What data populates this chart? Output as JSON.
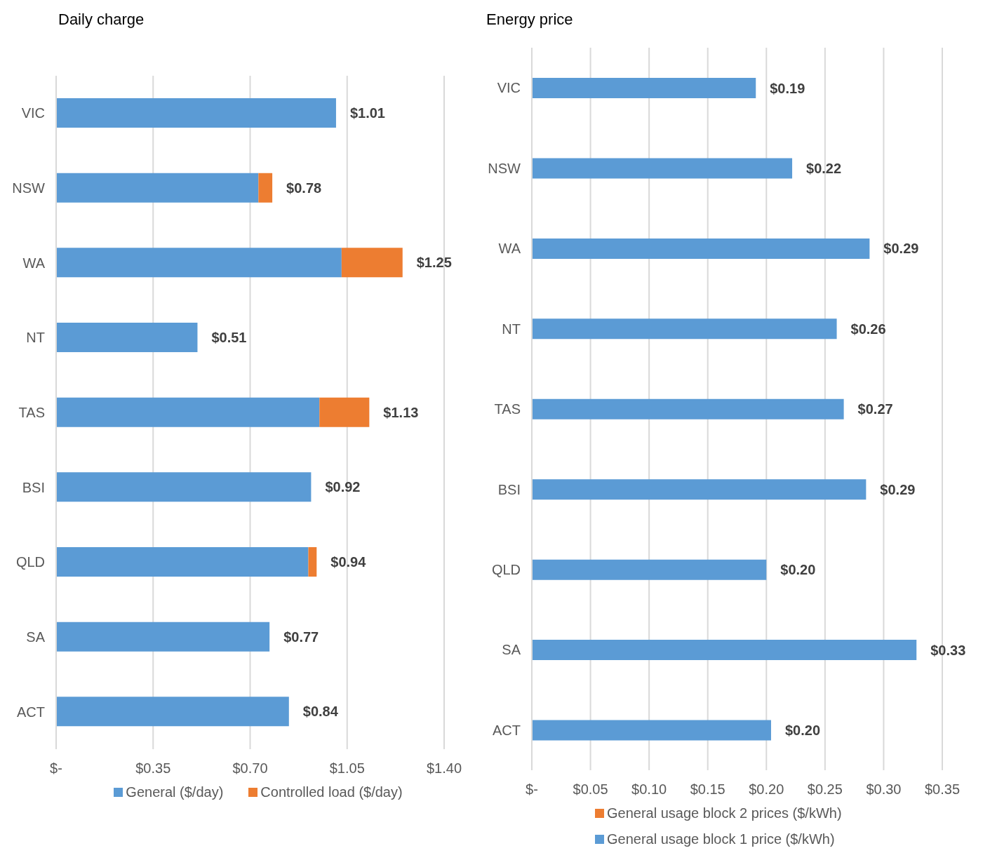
{
  "chart_data": [
    {
      "type": "bar",
      "title": "Daily charge",
      "orientation": "horizontal",
      "stacked": true,
      "categories": [
        "VIC",
        "NSW",
        "WA",
        "NT",
        "TAS",
        "BSI",
        "QLD",
        "SA",
        "ACT"
      ],
      "series": [
        {
          "name": "General ($/day)",
          "color": "#5b9bd5",
          "values": [
            1.01,
            0.73,
            1.03,
            0.51,
            0.95,
            0.92,
            0.91,
            0.77,
            0.84
          ]
        },
        {
          "name": "Controlled load ($/day)",
          "color": "#ed7d31",
          "values": [
            0,
            0.05,
            0.22,
            0,
            0.18,
            0,
            0.03,
            0,
            0
          ]
        }
      ],
      "totals": [
        "$1.01",
        "$0.78",
        "$1.25",
        "$0.51",
        "$1.13",
        "$0.92",
        "$0.94",
        "$0.77",
        "$0.84"
      ],
      "xlim": [
        0,
        1.4
      ],
      "xticks": [
        {
          "value": 0,
          "label": "$-"
        },
        {
          "value": 0.35,
          "label": "$0.35"
        },
        {
          "value": 0.7,
          "label": "$0.70"
        },
        {
          "value": 1.05,
          "label": "$1.05"
        },
        {
          "value": 1.4,
          "label": "$1.40"
        }
      ],
      "grid": "x",
      "legend": "bottom"
    },
    {
      "type": "bar",
      "title": "Energy price",
      "orientation": "horizontal",
      "stacked": true,
      "categories": [
        "VIC",
        "NSW",
        "WA",
        "NT",
        "TAS",
        "BSI",
        "QLD",
        "SA",
        "ACT"
      ],
      "series": [
        {
          "name": "General usage block 1 price ($/kWh)",
          "color": "#5b9bd5",
          "values": [
            0.191,
            0.222,
            0.288,
            0.26,
            0.266,
            0.285,
            0.2,
            0.328,
            0.204
          ],
          "value_labels": [
            "$0.19",
            "$0.22",
            "$0.29",
            "$0.26",
            "$0.27",
            "$0.29",
            "$0.20",
            "$0.33",
            "$0.20"
          ]
        },
        {
          "name": "General usage block 2 prices ($/kWh)",
          "color": "#ed7d31",
          "values": [
            0,
            0,
            0,
            0,
            0,
            0,
            0,
            0,
            0
          ]
        }
      ],
      "xlim": [
        0,
        0.35
      ],
      "xticks": [
        {
          "value": 0,
          "label": "$-"
        },
        {
          "value": 0.05,
          "label": "$0.05"
        },
        {
          "value": 0.1,
          "label": "$0.10"
        },
        {
          "value": 0.15,
          "label": "$0.15"
        },
        {
          "value": 0.2,
          "label": "$0.20"
        },
        {
          "value": 0.25,
          "label": "$0.25"
        },
        {
          "value": 0.3,
          "label": "$0.30"
        },
        {
          "value": 0.35,
          "label": "$0.35"
        }
      ],
      "grid": "x",
      "legend": "bottom"
    }
  ]
}
